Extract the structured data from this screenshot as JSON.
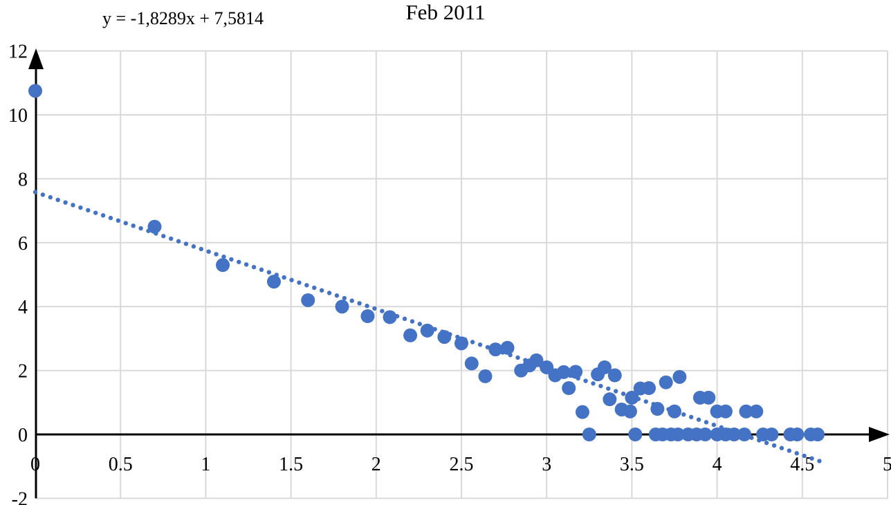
{
  "header": {
    "title": "Feb 2011",
    "equation_label": "y = -1,8289x + 7,5814"
  },
  "colors": {
    "point": "#4472C4",
    "trendline": "#4472C4",
    "grid": "#D9D9D9",
    "axis": "#000000",
    "text": "#000000",
    "background": "#FFFFFF"
  },
  "chart_data": {
    "type": "scatter",
    "title": "Feb 2011",
    "annotation": "y = -1,8289x + 7,5814",
    "grid": true,
    "xlim": [
      0,
      5
    ],
    "ylim": [
      -2,
      12
    ],
    "x_ticks": [
      0,
      0.5,
      1,
      1.5,
      2,
      2.5,
      3,
      3.5,
      4,
      4.5,
      5
    ],
    "x_tick_labels": [
      "0",
      "0.5",
      "1",
      "1.5",
      "2",
      "2.5",
      "3",
      "3.5",
      "4",
      "4.5",
      "5"
    ],
    "y_ticks": [
      -2,
      0,
      2,
      4,
      6,
      8,
      10,
      12
    ],
    "y_tick_labels": [
      "-2",
      "0",
      "2",
      "4",
      "6",
      "8",
      "10",
      "12"
    ],
    "trendline": {
      "style": "dotted",
      "slope": -1.8289,
      "intercept": 7.5814,
      "x_start": 0,
      "x_end": 4.6
    },
    "series": [
      {
        "name": "Feb 2011",
        "points": [
          [
            0,
            10.75
          ],
          [
            0.7,
            6.5
          ],
          [
            1.1,
            5.3
          ],
          [
            1.4,
            4.78
          ],
          [
            1.6,
            4.2
          ],
          [
            1.8,
            4.0
          ],
          [
            1.95,
            3.7
          ],
          [
            2.08,
            3.67
          ],
          [
            2.2,
            3.1
          ],
          [
            2.3,
            3.25
          ],
          [
            2.4,
            3.05
          ],
          [
            2.5,
            2.85
          ],
          [
            2.56,
            2.22
          ],
          [
            2.64,
            1.82
          ],
          [
            2.7,
            2.66
          ],
          [
            2.77,
            2.71
          ],
          [
            2.85,
            2.0
          ],
          [
            2.9,
            2.16
          ],
          [
            2.94,
            2.32
          ],
          [
            3.0,
            2.1
          ],
          [
            3.05,
            1.85
          ],
          [
            3.1,
            1.95
          ],
          [
            3.13,
            1.45
          ],
          [
            3.17,
            1.96
          ],
          [
            3.21,
            0.7
          ],
          [
            3.25,
            0
          ],
          [
            3.3,
            1.88
          ],
          [
            3.34,
            2.1
          ],
          [
            3.37,
            1.1
          ],
          [
            3.4,
            1.85
          ],
          [
            3.44,
            0.78
          ],
          [
            3.49,
            0.72
          ],
          [
            3.5,
            1.15
          ],
          [
            3.52,
            0
          ],
          [
            3.55,
            1.44
          ],
          [
            3.6,
            1.45
          ],
          [
            3.64,
            0
          ],
          [
            3.65,
            0.8
          ],
          [
            3.68,
            0
          ],
          [
            3.7,
            1.63
          ],
          [
            3.73,
            0
          ],
          [
            3.75,
            0.72
          ],
          [
            3.77,
            0
          ],
          [
            3.78,
            1.8
          ],
          [
            3.83,
            0
          ],
          [
            3.88,
            0
          ],
          [
            3.9,
            1.15
          ],
          [
            3.93,
            0
          ],
          [
            3.95,
            1.15
          ],
          [
            4.0,
            0.72
          ],
          [
            4.0,
            0
          ],
          [
            4.05,
            0.72
          ],
          [
            4.05,
            0
          ],
          [
            4.1,
            0
          ],
          [
            4.16,
            0
          ],
          [
            4.17,
            0.72
          ],
          [
            4.23,
            0.72
          ],
          [
            4.27,
            0
          ],
          [
            4.32,
            0
          ],
          [
            4.43,
            0
          ],
          [
            4.47,
            0
          ],
          [
            4.55,
            0
          ],
          [
            4.59,
            0
          ]
        ]
      }
    ]
  }
}
